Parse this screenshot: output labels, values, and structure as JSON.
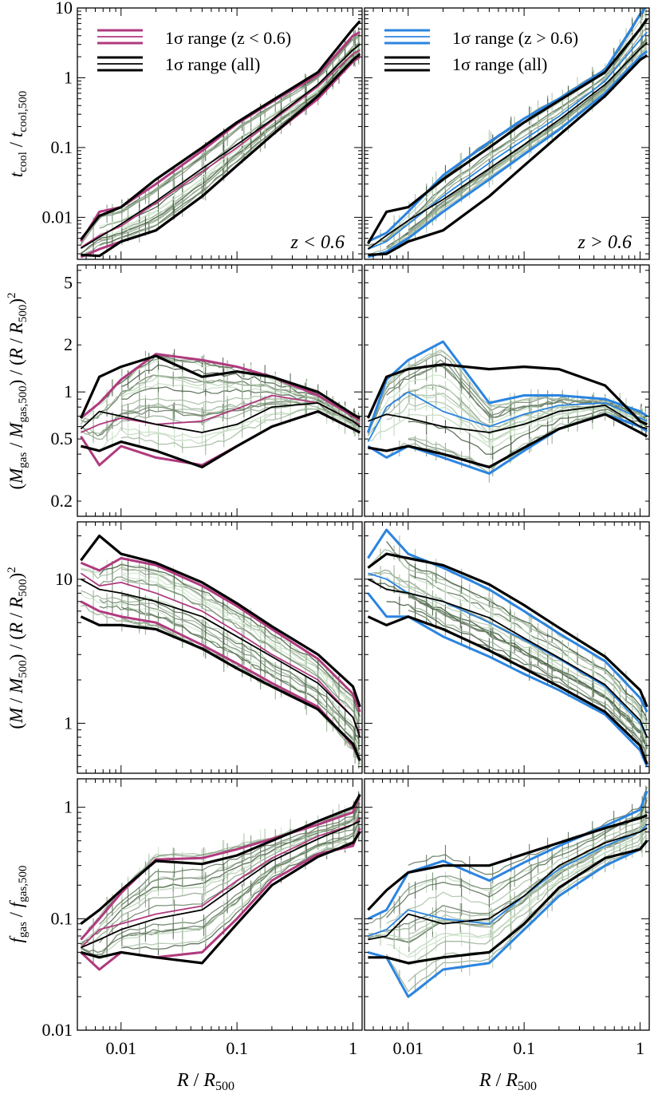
{
  "x_axis": {
    "label": "R / R500",
    "ticks": [
      "0.01",
      "0.1",
      "1"
    ],
    "scale": "log",
    "range": [
      0.0042,
      1.2
    ]
  },
  "colors": {
    "low_z_sigma": "#b03a7e",
    "high_z_sigma": "#2b84e0",
    "all_sigma": "#000000",
    "profile_dark": "#3c5138",
    "profile_light": "#cfe7cc"
  },
  "legend": {
    "left_sigma": "1σ range (z < 0.6)",
    "right_sigma": "1σ range (z > 0.6)",
    "all_sigma": "1σ range (all)"
  },
  "panel_labels": {
    "left": "z < 0.6",
    "right": "z > 0.6"
  },
  "rows": [
    {
      "key": "tcool",
      "ylabel": "tcool / tcool,500",
      "scale": "log",
      "ylim": [
        0.0025,
        10
      ],
      "ticks": [
        "0.01",
        "0.1",
        "1",
        "10"
      ]
    },
    {
      "key": "mgas",
      "ylabel": "(Mgas / Mgas,500) / (R / R500)2",
      "scale": "log",
      "ylim": [
        0.16,
        6.5
      ],
      "ticks": [
        "0.2",
        "0.5",
        "1",
        "2",
        "5"
      ]
    },
    {
      "key": "mtot",
      "ylabel": "(M / M500) / (R / R500)2",
      "scale": "log",
      "ylim": [
        0.45,
        25
      ],
      "ticks": [
        "1",
        "10"
      ]
    },
    {
      "key": "fgas",
      "ylabel": "fgas / fgas,500",
      "scale": "log",
      "ylim": [
        0.01,
        1.8
      ],
      "ticks": [
        "0.01",
        "0.1",
        "1"
      ]
    }
  ],
  "chart_data": [
    {
      "type": "line",
      "panel": "tcool z<0.6",
      "x_scale": "log",
      "y_scale": "log",
      "x": [
        0.0045,
        0.0065,
        0.01,
        0.02,
        0.05,
        0.1,
        0.2,
        0.5,
        1.0,
        1.15
      ],
      "series": [
        {
          "name": "1σ range (z < 0.6)",
          "values": [
            0.0045,
            0.012,
            0.014,
            0.03,
            0.09,
            0.22,
            0.45,
            1.1,
            4.0,
            4.5
          ]
        },
        {
          "name": "1σ range (z < 0.6)",
          "values": [
            0.0037,
            0.0055,
            0.0075,
            0.016,
            0.045,
            0.1,
            0.24,
            0.75,
            2.2,
            2.5
          ]
        },
        {
          "name": "1σ range (z < 0.6)",
          "values": [
            0.0027,
            0.0035,
            0.0045,
            0.0065,
            0.02,
            0.055,
            0.15,
            0.5,
            1.7,
            2.0
          ]
        },
        {
          "name": "1σ range (all)",
          "values": [
            0.0048,
            0.0105,
            0.014,
            0.035,
            0.1,
            0.23,
            0.47,
            1.2,
            5.0,
            6.5
          ]
        },
        {
          "name": "1σ range (all)",
          "values": [
            0.0036,
            0.0052,
            0.008,
            0.017,
            0.05,
            0.11,
            0.25,
            0.8,
            2.5,
            3.0
          ]
        },
        {
          "name": "1σ range (all)",
          "values": [
            0.0029,
            0.0028,
            0.0045,
            0.0065,
            0.02,
            0.055,
            0.15,
            0.55,
            1.8,
            2.2
          ]
        }
      ]
    },
    {
      "type": "line",
      "panel": "tcool z>0.6",
      "x_scale": "log",
      "y_scale": "log",
      "x": [
        0.0045,
        0.0065,
        0.01,
        0.02,
        0.05,
        0.1,
        0.2,
        0.5,
        1.0,
        1.15
      ],
      "series": [
        {
          "name": "1σ range (z > 0.6)",
          "values": [
            0.0045,
            0.006,
            0.012,
            0.04,
            0.12,
            0.26,
            0.5,
            1.3,
            8.0,
            11
          ]
        },
        {
          "name": "1σ range (z > 0.6)",
          "values": [
            0.0035,
            0.0045,
            0.008,
            0.02,
            0.06,
            0.13,
            0.28,
            0.9,
            3.5,
            4.5
          ]
        },
        {
          "name": "1σ range (z > 0.6)",
          "values": [
            0.0027,
            0.0032,
            0.005,
            0.012,
            0.035,
            0.08,
            0.18,
            0.6,
            2.0,
            2.4
          ]
        },
        {
          "name": "1σ range (all)",
          "values": [
            0.0042,
            0.012,
            0.014,
            0.035,
            0.1,
            0.23,
            0.47,
            1.2,
            5.0,
            7.0
          ]
        },
        {
          "name": "1σ range (all)",
          "values": [
            0.0035,
            0.0055,
            0.009,
            0.018,
            0.05,
            0.11,
            0.25,
            0.8,
            2.6,
            3.2
          ]
        },
        {
          "name": "1σ range (all)",
          "values": [
            0.0029,
            0.003,
            0.0045,
            0.0065,
            0.02,
            0.055,
            0.15,
            0.55,
            1.8,
            2.1
          ]
        }
      ]
    },
    {
      "type": "line",
      "panel": "mgas z<0.6",
      "x_scale": "log",
      "y_scale": "log",
      "x": [
        0.0045,
        0.0065,
        0.01,
        0.02,
        0.05,
        0.1,
        0.2,
        0.5,
        1.0,
        1.15
      ],
      "series": [
        {
          "name": "1σ range (z < 0.6)",
          "values": [
            0.68,
            0.85,
            1.2,
            1.75,
            1.6,
            1.45,
            1.25,
            0.95,
            0.7,
            0.66
          ]
        },
        {
          "name": "1σ range (z < 0.6)",
          "values": [
            0.55,
            0.62,
            0.68,
            0.62,
            0.65,
            0.78,
            0.95,
            0.85,
            0.65,
            0.62
          ]
        },
        {
          "name": "1σ range (z < 0.6)",
          "values": [
            0.52,
            0.34,
            0.45,
            0.38,
            0.34,
            0.45,
            0.6,
            0.75,
            0.58,
            0.55
          ]
        },
        {
          "name": "1σ range (all)",
          "values": [
            0.68,
            1.25,
            1.45,
            1.7,
            1.25,
            1.35,
            1.25,
            1.0,
            0.72,
            0.68
          ]
        },
        {
          "name": "1σ range (all)",
          "values": [
            0.58,
            0.75,
            0.7,
            0.62,
            0.55,
            0.62,
            0.8,
            0.85,
            0.65,
            0.6
          ]
        },
        {
          "name": "1σ range (all)",
          "values": [
            0.45,
            0.42,
            0.48,
            0.42,
            0.33,
            0.45,
            0.6,
            0.75,
            0.58,
            0.55
          ]
        }
      ]
    },
    {
      "type": "line",
      "panel": "mgas z>0.6",
      "x_scale": "log",
      "y_scale": "log",
      "x": [
        0.0045,
        0.0065,
        0.01,
        0.02,
        0.05,
        0.1,
        0.2,
        0.5,
        1.0,
        1.15
      ],
      "series": [
        {
          "name": "1σ range (z > 0.6)",
          "values": [
            0.55,
            1.2,
            1.6,
            2.1,
            0.85,
            0.95,
            0.95,
            0.9,
            0.75,
            0.7
          ]
        },
        {
          "name": "1σ range (z > 0.6)",
          "values": [
            0.48,
            0.8,
            1.0,
            0.75,
            0.6,
            0.72,
            0.82,
            0.85,
            0.68,
            0.65
          ]
        },
        {
          "name": "1σ range (z > 0.6)",
          "values": [
            0.45,
            0.38,
            0.45,
            0.38,
            0.3,
            0.42,
            0.58,
            0.72,
            0.6,
            0.56
          ]
        },
        {
          "name": "1σ range (all)",
          "values": [
            0.68,
            1.25,
            1.4,
            1.5,
            1.4,
            1.45,
            1.4,
            1.1,
            0.65,
            0.62
          ]
        },
        {
          "name": "1σ range (all)",
          "values": [
            0.65,
            0.72,
            0.68,
            0.6,
            0.55,
            0.62,
            0.75,
            0.82,
            0.6,
            0.58
          ]
        },
        {
          "name": "1σ range (all)",
          "values": [
            0.44,
            0.42,
            0.45,
            0.4,
            0.33,
            0.44,
            0.58,
            0.72,
            0.55,
            0.52
          ]
        }
      ]
    },
    {
      "type": "line",
      "panel": "mtot z<0.6",
      "x_scale": "log",
      "y_scale": "log",
      "x": [
        0.0045,
        0.0065,
        0.01,
        0.02,
        0.05,
        0.1,
        0.2,
        0.5,
        1.0,
        1.15
      ],
      "series": [
        {
          "name": "1σ range (z < 0.6)",
          "values": [
            13.0,
            11.5,
            14.0,
            12.5,
            9.0,
            6.5,
            4.5,
            2.8,
            1.6,
            1.2
          ]
        },
        {
          "name": "1σ range (z < 0.6)",
          "values": [
            11.0,
            9.0,
            9.5,
            8.0,
            6.0,
            4.3,
            3.0,
            2.0,
            1.1,
            0.85
          ]
        },
        {
          "name": "1σ range (z < 0.6)",
          "values": [
            7.0,
            6.0,
            5.5,
            5.0,
            3.5,
            2.6,
            1.9,
            1.3,
            0.7,
            0.55
          ]
        },
        {
          "name": "1σ range (all)",
          "values": [
            13.5,
            20.0,
            15.0,
            13.0,
            9.5,
            6.8,
            4.7,
            3.0,
            1.8,
            1.3
          ]
        },
        {
          "name": "1σ range (all)",
          "values": [
            10.0,
            8.5,
            8.0,
            7.0,
            5.5,
            4.0,
            2.9,
            1.9,
            1.1,
            0.8
          ]
        },
        {
          "name": "1σ range (all)",
          "values": [
            5.5,
            4.8,
            4.8,
            4.5,
            3.3,
            2.4,
            1.8,
            1.25,
            0.72,
            0.55
          ]
        }
      ]
    },
    {
      "type": "line",
      "panel": "mtot z>0.6",
      "x_scale": "log",
      "y_scale": "log",
      "x": [
        0.0045,
        0.0065,
        0.01,
        0.02,
        0.05,
        0.1,
        0.2,
        0.5,
        1.0,
        1.15
      ],
      "series": [
        {
          "name": "1σ range (z > 0.6)",
          "values": [
            14.0,
            22.0,
            15.0,
            12.0,
            8.5,
            6.0,
            4.2,
            2.7,
            1.5,
            1.2
          ]
        },
        {
          "name": "1σ range (z > 0.6)",
          "values": [
            11.0,
            10.0,
            8.0,
            7.0,
            5.0,
            3.8,
            2.8,
            1.8,
            1.0,
            0.8
          ]
        },
        {
          "name": "1σ range (z > 0.6)",
          "values": [
            8.0,
            5.5,
            5.5,
            4.0,
            2.9,
            2.2,
            1.7,
            1.15,
            0.65,
            0.5
          ]
        },
        {
          "name": "1σ range (all)",
          "values": [
            12.0,
            15.0,
            14.0,
            12.5,
            9.2,
            6.6,
            4.6,
            2.9,
            1.7,
            1.3
          ]
        },
        {
          "name": "1σ range (all)",
          "values": [
            10.0,
            8.5,
            8.0,
            7.0,
            5.4,
            3.9,
            2.85,
            1.85,
            1.05,
            0.8
          ]
        },
        {
          "name": "1σ range (all)",
          "values": [
            5.5,
            4.8,
            5.5,
            4.5,
            3.2,
            2.4,
            1.8,
            1.2,
            0.7,
            0.52
          ]
        }
      ]
    },
    {
      "type": "line",
      "panel": "fgas z<0.6",
      "x_scale": "log",
      "y_scale": "log",
      "x": [
        0.0045,
        0.0065,
        0.01,
        0.02,
        0.05,
        0.1,
        0.2,
        0.5,
        1.0,
        1.15
      ],
      "series": [
        {
          "name": "1σ range (z < 0.6)",
          "values": [
            0.065,
            0.1,
            0.17,
            0.34,
            0.35,
            0.42,
            0.52,
            0.7,
            0.9,
            1.3
          ]
        },
        {
          "name": "1σ range (z < 0.6)",
          "values": [
            0.055,
            0.08,
            0.09,
            0.11,
            0.13,
            0.22,
            0.35,
            0.55,
            0.7,
            0.8
          ]
        },
        {
          "name": "1σ range (z < 0.6)",
          "values": [
            0.05,
            0.035,
            0.05,
            0.045,
            0.05,
            0.1,
            0.22,
            0.38,
            0.45,
            0.65
          ]
        },
        {
          "name": "1σ range (all)",
          "values": [
            0.09,
            0.12,
            0.18,
            0.33,
            0.31,
            0.37,
            0.5,
            0.75,
            1.0,
            1.3
          ]
        },
        {
          "name": "1σ range (all)",
          "values": [
            0.055,
            0.065,
            0.08,
            0.1,
            0.12,
            0.2,
            0.33,
            0.52,
            0.7,
            0.75
          ]
        },
        {
          "name": "1σ range (all)",
          "values": [
            0.05,
            0.045,
            0.05,
            0.045,
            0.04,
            0.09,
            0.2,
            0.36,
            0.48,
            0.6
          ]
        }
      ]
    },
    {
      "type": "line",
      "panel": "fgas z>0.6",
      "x_scale": "log",
      "y_scale": "log",
      "x": [
        0.0045,
        0.0065,
        0.01,
        0.02,
        0.05,
        0.1,
        0.2,
        0.5,
        1.0,
        1.15
      ],
      "series": [
        {
          "name": "1σ range (z > 0.6)",
          "values": [
            0.1,
            0.12,
            0.26,
            0.33,
            0.22,
            0.32,
            0.45,
            0.68,
            0.95,
            1.4
          ]
        },
        {
          "name": "1σ range (z > 0.6)",
          "values": [
            0.07,
            0.08,
            0.12,
            0.1,
            0.09,
            0.16,
            0.28,
            0.45,
            0.6,
            0.7
          ]
        },
        {
          "name": "1σ range (z > 0.6)",
          "values": [
            0.05,
            0.045,
            0.02,
            0.035,
            0.04,
            0.08,
            0.16,
            0.3,
            0.42,
            0.5
          ]
        },
        {
          "name": "1σ range (all)",
          "values": [
            0.12,
            0.18,
            0.26,
            0.3,
            0.3,
            0.38,
            0.48,
            0.65,
            0.8,
            0.85
          ]
        },
        {
          "name": "1σ range (all)",
          "values": [
            0.065,
            0.07,
            0.11,
            0.09,
            0.1,
            0.16,
            0.3,
            0.48,
            0.6,
            0.65
          ]
        },
        {
          "name": "1σ range (all)",
          "values": [
            0.045,
            0.045,
            0.04,
            0.045,
            0.05,
            0.09,
            0.19,
            0.35,
            0.42,
            0.5
          ]
        }
      ]
    }
  ]
}
